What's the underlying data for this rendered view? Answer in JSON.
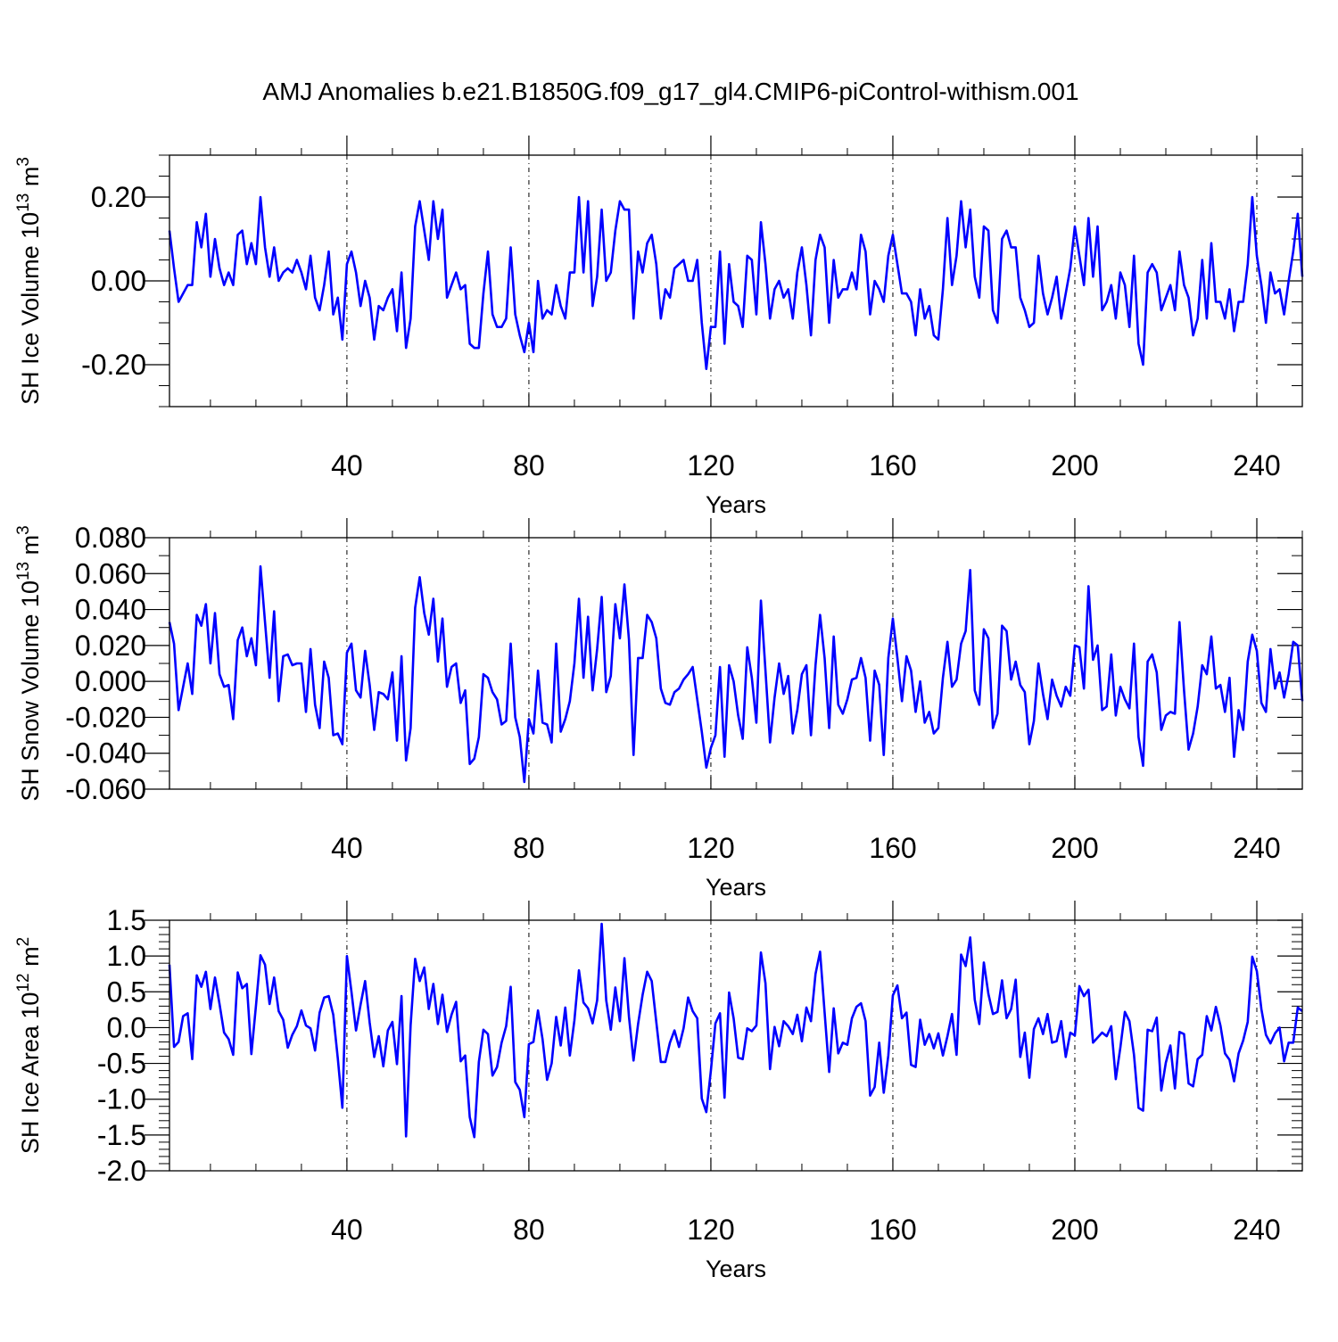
{
  "title": "AMJ Anomalies b.e21.B1850G.f09_g17_gl4.CMIP6-piControl-withism.001",
  "line_color": "#0000ff",
  "chart_data": [
    {
      "type": "line",
      "ylabel_parts": [
        "SH Ice Volume 10",
        "13",
        " m",
        "3"
      ],
      "xlabel": "Years",
      "xlim": [
        1,
        250
      ],
      "ylim": [
        -0.3,
        0.3
      ],
      "x_ticks": [
        40,
        80,
        120,
        160,
        200,
        240
      ],
      "x_tick_labels": [
        "40",
        "80",
        "120",
        "160",
        "200",
        "240"
      ],
      "y_ticks": [
        -0.2,
        0.0,
        0.2
      ],
      "y_tick_labels": [
        "-0.20",
        "0.00",
        "0.20"
      ],
      "y_minor_step": 0.05,
      "grid": "vertical dashed at major x ticks",
      "series": [
        {
          "x_start": 1,
          "values": [
            0.12,
            0.03,
            -0.05,
            -0.03,
            -0.01,
            -0.01,
            0.14,
            0.08,
            0.16,
            0.01,
            0.1,
            0.03,
            -0.01,
            0.02,
            -0.01,
            0.11,
            0.12,
            0.04,
            0.09,
            0.04,
            0.2,
            0.08,
            0.01,
            0.08,
            0.0,
            0.02,
            0.03,
            0.02,
            0.05,
            0.02,
            -0.02,
            0.06,
            -0.04,
            -0.07,
            -0.01,
            0.07,
            -0.08,
            -0.04,
            -0.14,
            0.04,
            0.07,
            0.02,
            -0.06,
            0.0,
            -0.04,
            -0.14,
            -0.06,
            -0.07,
            -0.04,
            -0.02,
            -0.12,
            0.02,
            -0.16,
            -0.09,
            0.13,
            0.19,
            0.12,
            0.05,
            0.19,
            0.1,
            0.17,
            -0.04,
            -0.01,
            0.02,
            -0.02,
            -0.01,
            -0.15,
            -0.16,
            -0.16,
            -0.03,
            0.07,
            -0.08,
            -0.11,
            -0.11,
            -0.09,
            0.08,
            -0.08,
            -0.13,
            -0.17,
            -0.1,
            -0.17,
            0.0,
            -0.09,
            -0.07,
            -0.08,
            -0.01,
            -0.06,
            -0.09,
            0.02,
            0.02,
            0.2,
            0.02,
            0.19,
            -0.06,
            0.01,
            0.17,
            0.0,
            0.02,
            0.12,
            0.19,
            0.17,
            0.17,
            -0.09,
            0.07,
            0.02,
            0.09,
            0.11,
            0.04,
            -0.09,
            -0.02,
            -0.04,
            0.03,
            0.04,
            0.05,
            0.0,
            0.0,
            0.05,
            -0.1,
            -0.21,
            -0.11,
            -0.11,
            0.07,
            -0.15,
            0.04,
            -0.05,
            -0.06,
            -0.11,
            0.06,
            0.05,
            -0.08,
            0.14,
            0.04,
            -0.09,
            -0.02,
            0.0,
            -0.04,
            -0.02,
            -0.09,
            0.02,
            0.08,
            -0.01,
            -0.13,
            0.05,
            0.11,
            0.08,
            -0.1,
            0.05,
            -0.04,
            -0.02,
            -0.02,
            0.02,
            -0.02,
            0.11,
            0.07,
            -0.08,
            0.0,
            -0.02,
            -0.05,
            0.06,
            0.11,
            0.04,
            -0.03,
            -0.03,
            -0.05,
            -0.13,
            -0.02,
            -0.09,
            -0.06,
            -0.13,
            -0.14,
            -0.02,
            0.15,
            -0.01,
            0.06,
            0.19,
            0.08,
            0.17,
            0.01,
            -0.04,
            0.13,
            0.12,
            -0.07,
            -0.1,
            0.1,
            0.12,
            0.08,
            0.08,
            -0.04,
            -0.07,
            -0.11,
            -0.1,
            0.06,
            -0.03,
            -0.08,
            -0.04,
            0.01,
            -0.09,
            -0.03,
            0.03,
            0.13,
            0.06,
            -0.01,
            0.15,
            0.01,
            0.13,
            -0.07,
            -0.05,
            -0.01,
            -0.09,
            0.02,
            -0.01,
            -0.11,
            0.06,
            -0.15,
            -0.2,
            0.02,
            0.04,
            0.02,
            -0.07,
            -0.04,
            -0.01,
            -0.07,
            0.07,
            -0.01,
            -0.04,
            -0.13,
            -0.09,
            0.05,
            -0.09,
            0.09,
            -0.05,
            -0.05,
            -0.09,
            -0.02,
            -0.12,
            -0.05,
            -0.05,
            0.04,
            0.2,
            0.06,
            -0.01,
            -0.1,
            0.02,
            -0.03,
            -0.02,
            -0.08,
            0.0,
            0.07,
            0.16,
            0.01
          ]
        }
      ]
    },
    {
      "type": "line",
      "ylabel_parts": [
        "SH Snow Volume 10",
        "13",
        " m",
        "3"
      ],
      "xlabel": "Years",
      "xlim": [
        1,
        250
      ],
      "ylim": [
        -0.06,
        0.08
      ],
      "x_ticks": [
        40,
        80,
        120,
        160,
        200,
        240
      ],
      "x_tick_labels": [
        "40",
        "80",
        "120",
        "160",
        "200",
        "240"
      ],
      "y_ticks": [
        -0.06,
        -0.04,
        -0.02,
        0.0,
        0.02,
        0.04,
        0.06,
        0.08
      ],
      "y_tick_labels": [
        "-0.060",
        "-0.040",
        "-0.020",
        "0.000",
        "0.020",
        "0.040",
        "0.060",
        "0.080"
      ],
      "y_minor_step": 0.01,
      "grid": "vertical dashed at major x ticks",
      "series": [
        {
          "x_start": 1,
          "values": [
            0.033,
            0.021,
            -0.016,
            -0.003,
            0.01,
            -0.007,
            0.037,
            0.031,
            0.043,
            0.01,
            0.038,
            0.004,
            -0.003,
            -0.002,
            -0.021,
            0.023,
            0.03,
            0.014,
            0.024,
            0.009,
            0.064,
            0.033,
            0.002,
            0.039,
            -0.011,
            0.014,
            0.015,
            0.009,
            0.01,
            0.01,
            -0.017,
            0.018,
            -0.013,
            -0.026,
            0.011,
            0.002,
            -0.03,
            -0.029,
            -0.035,
            0.016,
            0.021,
            -0.005,
            -0.009,
            0.017,
            -0.002,
            -0.027,
            -0.006,
            -0.007,
            -0.01,
            0.005,
            -0.033,
            0.014,
            -0.044,
            -0.026,
            0.041,
            0.058,
            0.038,
            0.026,
            0.046,
            0.011,
            0.035,
            -0.003,
            0.008,
            0.01,
            -0.012,
            -0.005,
            -0.046,
            -0.043,
            -0.031,
            0.004,
            0.002,
            -0.006,
            -0.01,
            -0.024,
            -0.022,
            0.021,
            -0.02,
            -0.031,
            -0.056,
            -0.021,
            -0.029,
            0.006,
            -0.023,
            -0.024,
            -0.034,
            0.021,
            -0.028,
            -0.021,
            -0.011,
            0.01,
            0.046,
            0.002,
            0.036,
            -0.005,
            0.018,
            0.047,
            -0.006,
            0.003,
            0.043,
            0.024,
            0.054,
            0.023,
            -0.041,
            0.013,
            0.013,
            0.037,
            0.033,
            0.024,
            -0.004,
            -0.012,
            -0.013,
            -0.006,
            -0.004,
            0.001,
            0.004,
            0.008,
            -0.01,
            -0.028,
            -0.048,
            -0.037,
            -0.03,
            0.008,
            -0.042,
            0.009,
            0.0,
            -0.019,
            -0.032,
            0.019,
            0.002,
            -0.023,
            0.045,
            0.006,
            -0.034,
            -0.009,
            0.01,
            -0.007,
            0.003,
            -0.029,
            -0.016,
            0.004,
            0.009,
            -0.03,
            0.009,
            0.037,
            0.013,
            -0.026,
            0.025,
            -0.013,
            -0.018,
            -0.01,
            0.001,
            0.002,
            0.013,
            0.002,
            -0.033,
            0.006,
            -0.002,
            -0.041,
            0.013,
            0.035,
            0.013,
            -0.011,
            0.014,
            0.006,
            -0.017,
            0.0,
            -0.023,
            -0.017,
            -0.029,
            -0.026,
            0.002,
            0.022,
            -0.003,
            0.001,
            0.021,
            0.028,
            0.062,
            -0.005,
            -0.013,
            0.029,
            0.024,
            -0.026,
            -0.018,
            0.031,
            0.028,
            0.001,
            0.011,
            -0.002,
            -0.006,
            -0.035,
            -0.022,
            0.01,
            -0.007,
            -0.021,
            0.001,
            -0.008,
            -0.014,
            -0.003,
            -0.008,
            0.02,
            0.019,
            -0.004,
            0.053,
            0.012,
            0.02,
            -0.016,
            -0.014,
            0.015,
            -0.019,
            -0.003,
            -0.01,
            -0.015,
            0.021,
            -0.031,
            -0.047,
            0.011,
            0.015,
            0.005,
            -0.027,
            -0.019,
            -0.017,
            -0.018,
            0.033,
            -0.005,
            -0.038,
            -0.029,
            -0.014,
            0.009,
            0.004,
            0.025,
            -0.004,
            -0.002,
            -0.017,
            0.002,
            -0.042,
            -0.016,
            -0.027,
            0.011,
            0.026,
            0.017,
            -0.012,
            -0.017,
            0.018,
            -0.004,
            0.005,
            -0.009,
            0.004,
            0.022,
            0.02,
            -0.011
          ]
        }
      ]
    },
    {
      "type": "line",
      "ylabel_parts": [
        "SH Ice Area 10",
        "12",
        " m",
        "2"
      ],
      "xlabel": "Years",
      "xlim": [
        1,
        250
      ],
      "ylim": [
        -2.0,
        1.5
      ],
      "x_ticks": [
        40,
        80,
        120,
        160,
        200,
        240
      ],
      "x_tick_labels": [
        "40",
        "80",
        "120",
        "160",
        "200",
        "240"
      ],
      "y_ticks": [
        -2.0,
        -1.5,
        -1.0,
        -0.5,
        0.0,
        0.5,
        1.0,
        1.5
      ],
      "y_tick_labels": [
        "-2.0",
        "-1.5",
        "-1.0",
        "-0.5",
        "0.0",
        "0.5",
        "1.0",
        "1.5"
      ],
      "y_minor_step": 0.1,
      "grid": "vertical dashed at major x ticks",
      "series": [
        {
          "x_start": 1,
          "values": [
            0.88,
            -0.27,
            -0.2,
            0.16,
            0.2,
            -0.44,
            0.73,
            0.57,
            0.78,
            0.26,
            0.7,
            0.33,
            -0.07,
            -0.16,
            -0.38,
            0.77,
            0.55,
            0.61,
            -0.37,
            0.3,
            1.01,
            0.88,
            0.33,
            0.7,
            0.23,
            0.11,
            -0.28,
            -0.1,
            0.02,
            0.24,
            0.03,
            -0.01,
            -0.32,
            0.21,
            0.42,
            0.44,
            0.18,
            -0.43,
            -1.12,
            1.0,
            0.5,
            -0.04,
            0.32,
            0.65,
            0.07,
            -0.41,
            -0.12,
            -0.54,
            -0.04,
            0.08,
            -0.51,
            0.44,
            -1.52,
            0.03,
            0.96,
            0.65,
            0.84,
            0.26,
            0.61,
            0.05,
            0.46,
            -0.06,
            0.18,
            0.36,
            -0.47,
            -0.39,
            -1.25,
            -1.53,
            -0.48,
            -0.03,
            -0.09,
            -0.67,
            -0.55,
            -0.21,
            0.02,
            0.57,
            -0.76,
            -0.87,
            -1.25,
            -0.23,
            -0.2,
            0.24,
            -0.16,
            -0.73,
            -0.5,
            0.15,
            -0.25,
            0.28,
            -0.39,
            0.1,
            0.8,
            0.35,
            0.27,
            0.06,
            0.38,
            1.45,
            0.38,
            -0.03,
            0.56,
            0.09,
            0.97,
            0.15,
            -0.46,
            0.05,
            0.46,
            0.78,
            0.65,
            0.08,
            -0.48,
            -0.48,
            -0.21,
            -0.04,
            -0.27,
            -0.01,
            0.42,
            0.23,
            0.13,
            -0.99,
            -1.18,
            -0.6,
            0.06,
            0.2,
            -0.98,
            0.49,
            0.13,
            -0.42,
            -0.44,
            -0.01,
            -0.05,
            0.03,
            1.05,
            0.62,
            -0.58,
            0.01,
            -0.26,
            0.09,
            0.02,
            -0.09,
            0.18,
            -0.19,
            0.28,
            0.09,
            0.75,
            1.06,
            0.21,
            -0.62,
            0.27,
            -0.36,
            -0.21,
            -0.24,
            0.13,
            0.29,
            0.34,
            0.09,
            -0.95,
            -0.83,
            -0.21,
            -0.91,
            -0.39,
            0.45,
            0.59,
            0.13,
            0.21,
            -0.52,
            -0.55,
            0.11,
            -0.24,
            -0.09,
            -0.29,
            -0.08,
            -0.39,
            -0.12,
            0.19,
            -0.38,
            1.02,
            0.86,
            1.26,
            0.39,
            0.05,
            0.91,
            0.47,
            0.19,
            0.22,
            0.66,
            0.13,
            0.26,
            0.67,
            -0.41,
            -0.07,
            -0.7,
            -0.02,
            0.13,
            -0.09,
            0.19,
            -0.21,
            -0.19,
            0.09,
            -0.41,
            -0.07,
            -0.11,
            0.58,
            0.44,
            0.53,
            -0.21,
            -0.14,
            -0.07,
            -0.12,
            0.02,
            -0.72,
            -0.28,
            0.22,
            0.09,
            -0.38,
            -1.12,
            -1.16,
            -0.03,
            -0.05,
            0.14,
            -0.88,
            -0.49,
            -0.25,
            -0.85,
            -0.06,
            -0.09,
            -0.78,
            -0.82,
            -0.44,
            -0.38,
            0.16,
            -0.04,
            0.29,
            0.03,
            -0.36,
            -0.45,
            -0.75,
            -0.36,
            -0.18,
            0.08,
            0.99,
            0.79,
            0.26,
            -0.1,
            -0.22,
            -0.08,
            0.0,
            -0.47,
            -0.21,
            -0.21,
            0.28,
            0.23
          ]
        }
      ]
    }
  ]
}
